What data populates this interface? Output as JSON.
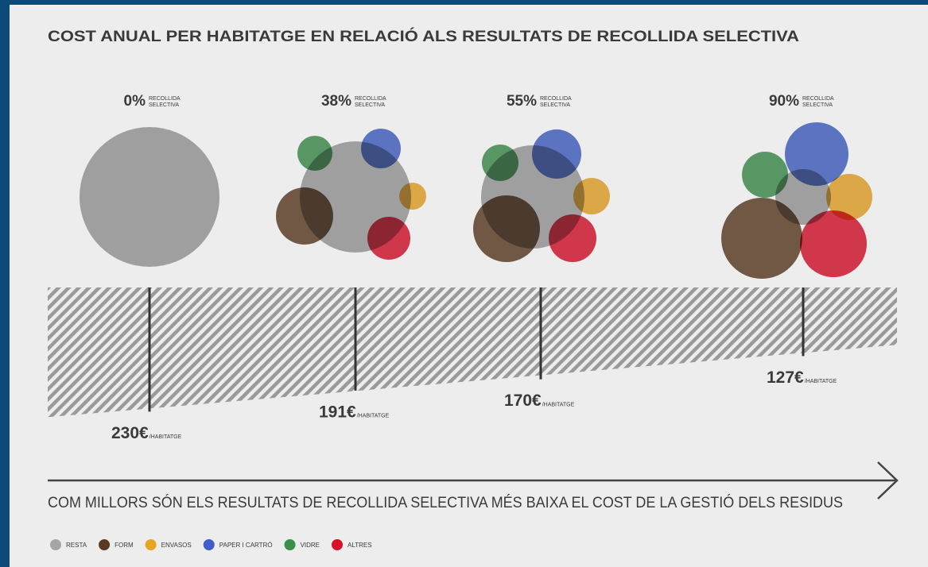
{
  "chart_data": {
    "type": "bubble",
    "title": "COST ANUAL PER HABITATGE EN RELACIÓ ALS RESULTATS DE RECOLLIDA SELECTIVA",
    "rate_labels": [
      "0%",
      "38%",
      "55%",
      "90%"
    ],
    "rate_note": [
      "RECOLLIDA",
      "SELECTIVA"
    ],
    "costs": [
      230,
      191,
      170,
      127
    ],
    "value_labels": [
      "230€",
      "191€",
      "170€",
      "127€"
    ],
    "cost_unit": "/HABITATGE",
    "caption": "COM MILLORS SÓN ELS RESULTATS DE RECOLLIDA SELECTIVA MÉS BAIXA EL COST DE LA GESTIÓ DELS RESIDUS",
    "series": [
      {
        "name": "RESTA",
        "color": "#a6a6a6",
        "values": [
          88,
          70,
          65,
          35
        ]
      },
      {
        "name": "FORM",
        "color": "#5a3a22",
        "values": [
          null,
          36,
          42,
          51
        ]
      },
      {
        "name": "ENVASOS",
        "color": "#e8a425",
        "values": [
          null,
          17,
          23,
          29
        ]
      },
      {
        "name": "PAPER I CARTRÓ",
        "color": "#3f5fc6",
        "values": [
          null,
          25,
          31,
          40
        ]
      },
      {
        "name": "VIDRE",
        "color": "#3a8f4a",
        "values": [
          null,
          22,
          23,
          29
        ]
      },
      {
        "name": "ALTRES",
        "color": "#d9102a",
        "values": [
          null,
          27,
          30,
          42
        ]
      }
    ]
  }
}
